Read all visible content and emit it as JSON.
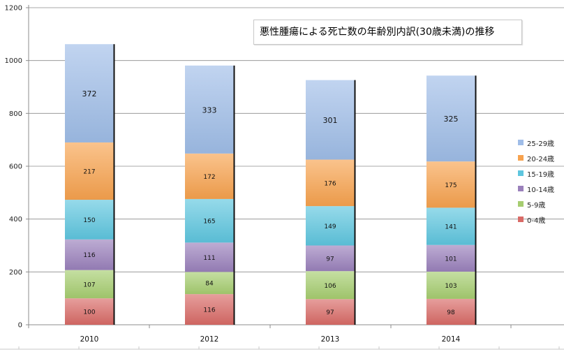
{
  "chart_data": {
    "type": "bar",
    "stacked": true,
    "title": "悪性腫瘍による死亡数の年齢別内訳(30歳未満)の推移",
    "categories": [
      "2010",
      "2012",
      "2013",
      "2014"
    ],
    "ylim": [
      0,
      1200
    ],
    "yticks": [
      "0",
      "200",
      "400",
      "600",
      "800",
      "1000",
      "1200"
    ],
    "grid": true,
    "legend_position": "right",
    "series": [
      {
        "name": "0-4歳",
        "color": "#d96a66",
        "values": [
          100,
          116,
          97,
          98
        ]
      },
      {
        "name": "5-9歳",
        "color": "#a6cd70",
        "values": [
          107,
          84,
          106,
          103
        ]
      },
      {
        "name": "10-14歳",
        "color": "#9a80bb",
        "values": [
          116,
          111,
          97,
          101
        ]
      },
      {
        "name": "15-19歳",
        "color": "#5ec6df",
        "values": [
          150,
          165,
          149,
          141
        ]
      },
      {
        "name": "20-24歳",
        "color": "#f7a24e",
        "values": [
          217,
          172,
          176,
          175
        ]
      },
      {
        "name": "25-29歳",
        "color": "#9fbde8",
        "values": [
          372,
          333,
          301,
          325
        ]
      }
    ]
  }
}
